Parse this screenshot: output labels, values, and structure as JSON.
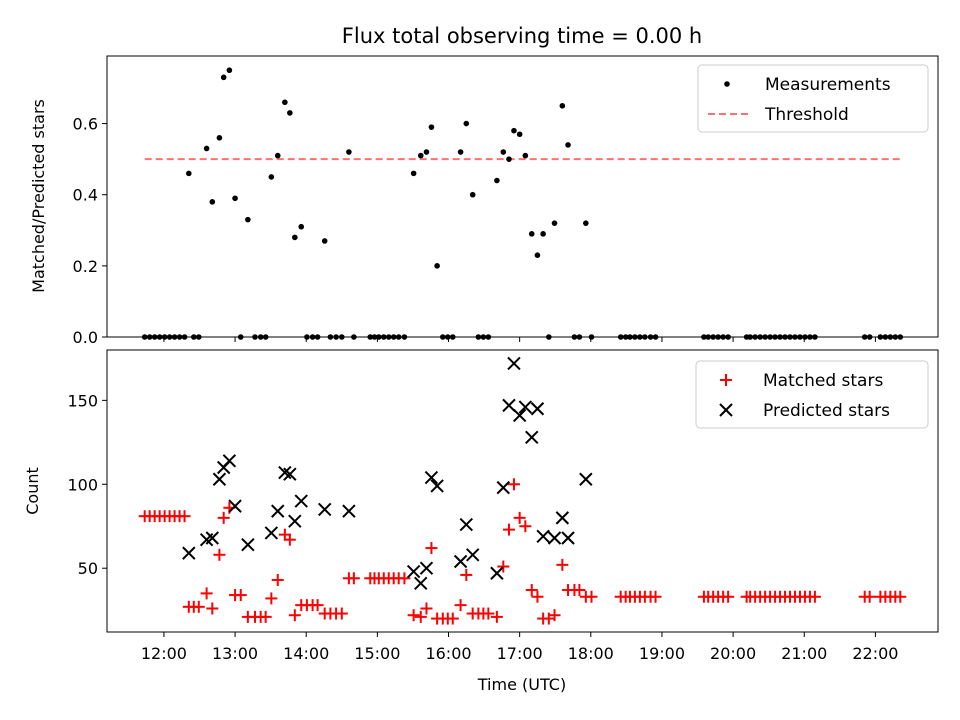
{
  "title": "Flux total observing time = 0.00 h",
  "chart_data": [
    {
      "type": "scatter",
      "ylabel": "Matched/Predicted stars",
      "xlim": [
        11.2,
        22.88
      ],
      "ylim": [
        0,
        0.79
      ],
      "yticks": [
        0.0,
        0.2,
        0.4,
        0.6
      ],
      "ytick_labels": [
        "0.0",
        "0.2",
        "0.4",
        "0.6"
      ],
      "legend_position": "top-right",
      "threshold": {
        "name": "Threshold",
        "y": 0.5,
        "x_start": 11.73,
        "x_end": 22.35,
        "color": "#ff7070"
      },
      "series": [
        {
          "name": "Measurements",
          "color": "#000000",
          "points": [
            [
              11.73,
              0
            ],
            [
              11.8,
              0
            ],
            [
              11.87,
              0
            ],
            [
              11.94,
              0
            ],
            [
              12.01,
              0
            ],
            [
              12.08,
              0
            ],
            [
              12.15,
              0
            ],
            [
              12.22,
              0
            ],
            [
              12.29,
              0
            ],
            [
              12.35,
              0.46
            ],
            [
              12.42,
              0
            ],
            [
              12.49,
              0
            ],
            [
              12.6,
              0.53
            ],
            [
              12.68,
              0.38
            ],
            [
              12.78,
              0.56
            ],
            [
              12.84,
              0.73
            ],
            [
              12.92,
              0.75
            ],
            [
              13.0,
              0.39
            ],
            [
              13.08,
              0
            ],
            [
              13.18,
              0.33
            ],
            [
              13.28,
              0
            ],
            [
              13.36,
              0
            ],
            [
              13.43,
              0
            ],
            [
              13.51,
              0.45
            ],
            [
              13.6,
              0.51
            ],
            [
              13.7,
              0.66
            ],
            [
              13.77,
              0.63
            ],
            [
              13.84,
              0.28
            ],
            [
              13.93,
              0.31
            ],
            [
              14.01,
              0
            ],
            [
              14.09,
              0
            ],
            [
              14.16,
              0
            ],
            [
              14.26,
              0.27
            ],
            [
              14.34,
              0
            ],
            [
              14.42,
              0
            ],
            [
              14.5,
              0
            ],
            [
              14.6,
              0.52
            ],
            [
              14.67,
              0
            ],
            [
              14.9,
              0
            ],
            [
              14.96,
              0
            ],
            [
              15.02,
              0
            ],
            [
              15.09,
              0
            ],
            [
              15.16,
              0
            ],
            [
              15.23,
              0
            ],
            [
              15.3,
              0
            ],
            [
              15.38,
              0
            ],
            [
              15.51,
              0.46
            ],
            [
              15.61,
              0.51
            ],
            [
              15.69,
              0.52
            ],
            [
              15.76,
              0.59
            ],
            [
              15.84,
              0.2
            ],
            [
              15.92,
              0
            ],
            [
              15.99,
              0
            ],
            [
              16.06,
              0
            ],
            [
              16.17,
              0.52
            ],
            [
              16.25,
              0.6
            ],
            [
              16.34,
              0.4
            ],
            [
              16.42,
              0
            ],
            [
              16.49,
              0
            ],
            [
              16.56,
              0
            ],
            [
              16.68,
              0.44
            ],
            [
              16.77,
              0.52
            ],
            [
              16.85,
              0.5
            ],
            [
              16.92,
              0.58
            ],
            [
              17.0,
              0.57
            ],
            [
              17.08,
              0.51
            ],
            [
              17.17,
              0.29
            ],
            [
              17.25,
              0.23
            ],
            [
              17.33,
              0.29
            ],
            [
              17.41,
              0
            ],
            [
              17.49,
              0.32
            ],
            [
              17.6,
              0.65
            ],
            [
              17.68,
              0.54
            ],
            [
              17.77,
              0
            ],
            [
              17.84,
              0
            ],
            [
              17.93,
              0.32
            ],
            [
              18.01,
              0
            ],
            [
              18.42,
              0
            ],
            [
              18.49,
              0
            ],
            [
              18.55,
              0
            ],
            [
              18.62,
              0
            ],
            [
              18.69,
              0
            ],
            [
              18.76,
              0
            ],
            [
              18.84,
              0
            ],
            [
              18.91,
              0
            ],
            [
              19.59,
              0
            ],
            [
              19.65,
              0
            ],
            [
              19.72,
              0
            ],
            [
              19.79,
              0
            ],
            [
              19.86,
              0
            ],
            [
              19.93,
              0
            ],
            [
              20.19,
              0
            ],
            [
              20.24,
              0
            ],
            [
              20.31,
              0
            ],
            [
              20.38,
              0
            ],
            [
              20.45,
              0
            ],
            [
              20.52,
              0
            ],
            [
              20.59,
              0
            ],
            [
              20.66,
              0
            ],
            [
              20.73,
              0
            ],
            [
              20.8,
              0
            ],
            [
              20.87,
              0
            ],
            [
              20.94,
              0
            ],
            [
              21.01,
              0
            ],
            [
              21.08,
              0
            ],
            [
              21.15,
              0
            ],
            [
              21.85,
              0
            ],
            [
              21.92,
              0
            ],
            [
              22.07,
              0
            ],
            [
              22.14,
              0
            ],
            [
              22.21,
              0
            ],
            [
              22.28,
              0
            ],
            [
              22.35,
              0
            ]
          ]
        }
      ]
    },
    {
      "type": "scatter",
      "xlabel": "Time (UTC)",
      "ylabel": "Count",
      "xlim": [
        11.2,
        22.88
      ],
      "ylim": [
        12,
        180
      ],
      "yticks": [
        50,
        100,
        150
      ],
      "ytick_labels": [
        "50",
        "100",
        "150"
      ],
      "xticks": [
        12,
        13,
        14,
        15,
        16,
        17,
        18,
        19,
        20,
        21,
        22
      ],
      "xtick_labels": [
        "12:00",
        "13:00",
        "14:00",
        "15:00",
        "16:00",
        "17:00",
        "18:00",
        "19:00",
        "20:00",
        "21:00",
        "22:00"
      ],
      "legend_position": "top-right",
      "series": [
        {
          "name": "Matched stars",
          "marker": "plus",
          "color": "#ff0000",
          "points": [
            [
              11.73,
              81
            ],
            [
              11.8,
              81
            ],
            [
              11.87,
              81
            ],
            [
              11.94,
              81
            ],
            [
              12.01,
              81
            ],
            [
              12.08,
              81
            ],
            [
              12.15,
              81
            ],
            [
              12.22,
              81
            ],
            [
              12.29,
              81
            ],
            [
              12.35,
              27
            ],
            [
              12.42,
              27
            ],
            [
              12.49,
              27
            ],
            [
              12.6,
              35
            ],
            [
              12.68,
              26
            ],
            [
              12.78,
              58
            ],
            [
              12.84,
              80
            ],
            [
              12.92,
              86
            ],
            [
              13.0,
              34
            ],
            [
              13.08,
              34
            ],
            [
              13.18,
              21
            ],
            [
              13.28,
              21
            ],
            [
              13.36,
              21
            ],
            [
              13.43,
              21
            ],
            [
              13.51,
              32
            ],
            [
              13.6,
              43
            ],
            [
              13.7,
              70
            ],
            [
              13.77,
              67
            ],
            [
              13.84,
              22
            ],
            [
              13.93,
              28
            ],
            [
              14.01,
              28
            ],
            [
              14.09,
              28
            ],
            [
              14.16,
              28
            ],
            [
              14.26,
              23
            ],
            [
              14.34,
              23
            ],
            [
              14.42,
              23
            ],
            [
              14.5,
              23
            ],
            [
              14.6,
              44
            ],
            [
              14.67,
              44
            ],
            [
              14.9,
              44
            ],
            [
              14.96,
              44
            ],
            [
              15.02,
              44
            ],
            [
              15.09,
              44
            ],
            [
              15.16,
              44
            ],
            [
              15.23,
              44
            ],
            [
              15.3,
              44
            ],
            [
              15.38,
              44
            ],
            [
              15.51,
              22
            ],
            [
              15.61,
              21
            ],
            [
              15.69,
              26
            ],
            [
              15.76,
              62
            ],
            [
              15.84,
              20
            ],
            [
              15.92,
              20
            ],
            [
              15.99,
              20
            ],
            [
              16.06,
              20
            ],
            [
              16.17,
              28
            ],
            [
              16.25,
              46
            ],
            [
              16.34,
              23
            ],
            [
              16.42,
              23
            ],
            [
              16.49,
              23
            ],
            [
              16.56,
              23
            ],
            [
              16.68,
              21
            ],
            [
              16.77,
              51
            ],
            [
              16.85,
              73
            ],
            [
              16.92,
              100
            ],
            [
              17.0,
              80
            ],
            [
              17.08,
              75
            ],
            [
              17.17,
              37
            ],
            [
              17.25,
              33
            ],
            [
              17.33,
              20
            ],
            [
              17.41,
              20
            ],
            [
              17.49,
              22
            ],
            [
              17.6,
              52
            ],
            [
              17.68,
              37
            ],
            [
              17.77,
              37
            ],
            [
              17.84,
              37
            ],
            [
              17.93,
              33
            ],
            [
              18.01,
              33
            ],
            [
              18.42,
              33
            ],
            [
              18.49,
              33
            ],
            [
              18.55,
              33
            ],
            [
              18.62,
              33
            ],
            [
              18.69,
              33
            ],
            [
              18.76,
              33
            ],
            [
              18.84,
              33
            ],
            [
              18.91,
              33
            ],
            [
              19.59,
              33
            ],
            [
              19.65,
              33
            ],
            [
              19.72,
              33
            ],
            [
              19.79,
              33
            ],
            [
              19.86,
              33
            ],
            [
              19.93,
              33
            ],
            [
              20.19,
              33
            ],
            [
              20.24,
              33
            ],
            [
              20.31,
              33
            ],
            [
              20.38,
              33
            ],
            [
              20.45,
              33
            ],
            [
              20.52,
              33
            ],
            [
              20.59,
              33
            ],
            [
              20.66,
              33
            ],
            [
              20.73,
              33
            ],
            [
              20.8,
              33
            ],
            [
              20.87,
              33
            ],
            [
              20.94,
              33
            ],
            [
              21.01,
              33
            ],
            [
              21.08,
              33
            ],
            [
              21.15,
              33
            ],
            [
              21.85,
              33
            ],
            [
              21.92,
              33
            ],
            [
              22.07,
              33
            ],
            [
              22.14,
              33
            ],
            [
              22.21,
              33
            ],
            [
              22.28,
              33
            ],
            [
              22.35,
              33
            ]
          ]
        },
        {
          "name": "Predicted stars",
          "marker": "x",
          "color": "#000000",
          "points": [
            [
              12.35,
              59
            ],
            [
              12.6,
              67
            ],
            [
              12.68,
              68
            ],
            [
              12.78,
              103
            ],
            [
              12.84,
              110
            ],
            [
              12.92,
              114
            ],
            [
              13.0,
              87
            ],
            [
              13.18,
              64
            ],
            [
              13.51,
              71
            ],
            [
              13.6,
              84
            ],
            [
              13.7,
              107
            ],
            [
              13.77,
              106
            ],
            [
              13.84,
              78
            ],
            [
              13.93,
              90
            ],
            [
              14.26,
              85
            ],
            [
              14.6,
              84
            ],
            [
              15.51,
              48
            ],
            [
              15.61,
              41
            ],
            [
              15.69,
              50
            ],
            [
              15.76,
              104
            ],
            [
              15.84,
              99
            ],
            [
              16.17,
              54
            ],
            [
              16.25,
              76
            ],
            [
              16.34,
              58
            ],
            [
              16.68,
              47
            ],
            [
              16.77,
              98
            ],
            [
              16.85,
              147
            ],
            [
              16.92,
              172
            ],
            [
              17.0,
              141
            ],
            [
              17.08,
              146
            ],
            [
              17.17,
              128
            ],
            [
              17.25,
              145
            ],
            [
              17.33,
              69
            ],
            [
              17.49,
              68
            ],
            [
              17.6,
              80
            ],
            [
              17.68,
              68
            ],
            [
              17.93,
              103
            ]
          ]
        }
      ]
    }
  ]
}
